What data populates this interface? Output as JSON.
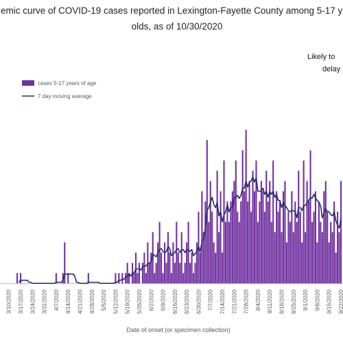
{
  "chart_data": {
    "type": "bar",
    "title_lines": [
      "emic curve of COVID-19 cases reported in Lexington-Fayette County among 5-17 y",
      "olds, as of 10/30/2020"
    ],
    "annotation_lines": [
      "Likely to",
      "delay"
    ],
    "x_label": "Date of onset (or specimen collection)",
    "categories": [
      "3/10/2020",
      null,
      null,
      null,
      null,
      null,
      null,
      "3/17/2020",
      null,
      null,
      null,
      null,
      null,
      null,
      "3/24/2020",
      null,
      null,
      null,
      null,
      null,
      null,
      "3/31/2020",
      null,
      null,
      null,
      null,
      null,
      null,
      "4/7/2020",
      null,
      null,
      null,
      null,
      null,
      null,
      "4/14/2020",
      null,
      null,
      null,
      null,
      null,
      null,
      "4/21/2020",
      null,
      null,
      null,
      null,
      null,
      null,
      "4/28/2020",
      null,
      null,
      null,
      null,
      null,
      null,
      "5/5/2020",
      null,
      null,
      null,
      null,
      null,
      null,
      "5/12/2020",
      null,
      null,
      null,
      null,
      null,
      null,
      "5/19/2020",
      null,
      null,
      null,
      null,
      null,
      null,
      "5/26/2020",
      null,
      null,
      null,
      null,
      null,
      null,
      "6/2/2020",
      null,
      null,
      null,
      null,
      null,
      null,
      "6/9/2020",
      null,
      null,
      null,
      null,
      null,
      null,
      "6/16/2020",
      null,
      null,
      null,
      null,
      null,
      null,
      "6/23/2020",
      null,
      null,
      null,
      null,
      null,
      null,
      "6/30/2020",
      null,
      null,
      null,
      null,
      null,
      null,
      "7/7/2020",
      null,
      null,
      null,
      null,
      null,
      null,
      "7/14/2020",
      null,
      null,
      null,
      null,
      null,
      null,
      "7/21/2020",
      null,
      null,
      null,
      null,
      null,
      null,
      "7/28/2020",
      null,
      null,
      null,
      null,
      null,
      null,
      "8/4/2020",
      null,
      null,
      null,
      null,
      null,
      null,
      "8/11/2020",
      null,
      null,
      null,
      null,
      null,
      null,
      "8/18/2020",
      null,
      null,
      null,
      null,
      null,
      null,
      "8/25/2020",
      null,
      null,
      null,
      null,
      null,
      null,
      "9/1/2020",
      null,
      null,
      null,
      null,
      null,
      null,
      "9/8/2020",
      null,
      null,
      null,
      null,
      null,
      null,
      "9/15/2020",
      null,
      null,
      null,
      null,
      null,
      null,
      "9/22/2020"
    ],
    "series": [
      {
        "name": "cases 5-17 years of age",
        "color": "#7030a0",
        "kind": "bar",
        "values": [
          0,
          0,
          0,
          0,
          0,
          1,
          0,
          1,
          0,
          0,
          0,
          0,
          0,
          0,
          0,
          0,
          0,
          0,
          0,
          0,
          0,
          0,
          0,
          0,
          0,
          0,
          0,
          0,
          1,
          0,
          0,
          0,
          1,
          4,
          0,
          1,
          0,
          0,
          0,
          0,
          0,
          0,
          0,
          0,
          0,
          0,
          0,
          1,
          0,
          0,
          0,
          0,
          0,
          0,
          0,
          0,
          0,
          0,
          0,
          0,
          0,
          0,
          0,
          1,
          0,
          1,
          0,
          1,
          0,
          1,
          2,
          1,
          0,
          2,
          1,
          3,
          1,
          2,
          0,
          2,
          3,
          1,
          4,
          2,
          3,
          5,
          1,
          2,
          4,
          6,
          3,
          1,
          4,
          2,
          5,
          3,
          1,
          4,
          2,
          6,
          3,
          2,
          5,
          1,
          2,
          4,
          6,
          2,
          3,
          1,
          2,
          4,
          7,
          3,
          9,
          5,
          8,
          14,
          6,
          10,
          7,
          4,
          3,
          11,
          5,
          9,
          3,
          12,
          6,
          8,
          6,
          8,
          9,
          10,
          12,
          7,
          6,
          8,
          13,
          9,
          15,
          8,
          10,
          7,
          11,
          9,
          12,
          6,
          8,
          10,
          9,
          7,
          11,
          8,
          10,
          6,
          12,
          5,
          9,
          7,
          8,
          5,
          9,
          10,
          4,
          7,
          6,
          9,
          5,
          8,
          6,
          11,
          7,
          4,
          12,
          5,
          10,
          8,
          13,
          6,
          7,
          9,
          4,
          8,
          6,
          5,
          9,
          10,
          7,
          4,
          6,
          5,
          8,
          3,
          7,
          5,
          10
        ]
      },
      {
        "name": "7 day moving average",
        "color": "#1f2d6b",
        "kind": "line",
        "values": [
          null,
          null,
          null,
          null,
          null,
          null,
          0.1,
          0.3,
          0.3,
          0.3,
          0.3,
          0.3,
          0.1,
          0.1,
          0,
          0,
          0,
          0,
          0,
          0,
          0,
          0,
          0,
          0,
          0,
          0,
          0,
          0,
          0.1,
          0.1,
          0.1,
          0.1,
          0.3,
          0.9,
          0.9,
          0.9,
          0.9,
          0.9,
          0.9,
          0.7,
          0.1,
          0.1,
          0,
          0,
          0,
          0,
          0,
          0.1,
          0.1,
          0.1,
          0.1,
          0.1,
          0.1,
          0.1,
          0,
          0,
          0,
          0,
          0,
          0,
          0,
          0,
          0,
          0.1,
          0.1,
          0.3,
          0.3,
          0.4,
          0.4,
          0.6,
          0.7,
          0.9,
          0.7,
          1.0,
          1.0,
          1.4,
          1.4,
          1.4,
          1.3,
          1.6,
          1.7,
          1.7,
          1.9,
          2.0,
          2.1,
          2.9,
          2.7,
          2.6,
          3.0,
          3.3,
          3.4,
          3.1,
          3.0,
          3.1,
          3.6,
          3.4,
          2.7,
          2.9,
          3.0,
          3.3,
          3.4,
          3.0,
          3.3,
          3.3,
          3.0,
          3.3,
          3.3,
          3.1,
          3.3,
          2.7,
          2.9,
          3.1,
          3.6,
          3.1,
          4.1,
          4.4,
          5.4,
          7.1,
          7.4,
          7.9,
          8.4,
          7.7,
          7.4,
          7.9,
          6.6,
          7.0,
          6.0,
          6.7,
          7.0,
          7.7,
          7.0,
          7.4,
          7.4,
          8.4,
          8.4,
          8.6,
          8.3,
          8.6,
          9.3,
          9.3,
          10.0,
          9.4,
          9.9,
          10.0,
          10.4,
          9.9,
          10.3,
          9.0,
          9.0,
          9.0,
          9.3,
          8.7,
          9.0,
          8.4,
          9.0,
          8.7,
          9.0,
          8.4,
          8.7,
          8.1,
          8.1,
          7.4,
          7.9,
          7.6,
          7.4,
          7.1,
          7.0,
          7.1,
          7.1,
          7.0,
          6.4,
          7.4,
          7.4,
          7.1,
          7.6,
          7.6,
          7.9,
          8.1,
          8.4,
          8.3,
          8.7,
          8.3,
          8.1,
          7.9,
          7.6,
          6.4,
          6.9,
          7.3,
          7.0,
          7.0,
          6.7,
          6.6,
          7.0,
          6.1,
          5.7,
          5.4,
          6.3
        ]
      }
    ],
    "ylim": [
      0,
      24
    ]
  }
}
